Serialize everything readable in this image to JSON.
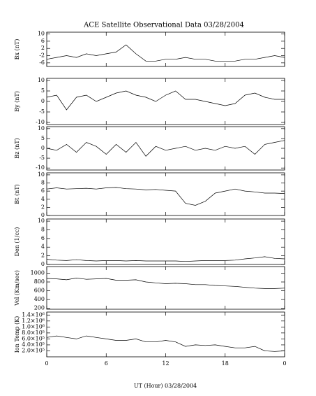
{
  "title": "ACE Satellite Observational Data   03/28/2004",
  "xlabel": "UT (Hour)   03/28/2004",
  "chart_data": [
    {
      "type": "line",
      "ylabel": "Bx (nT)",
      "ylim": [
        -8,
        11
      ],
      "yticks": [
        10,
        6,
        2,
        -2,
        -6
      ],
      "xlim": [
        0,
        24
      ],
      "xticks": [
        0,
        6,
        12,
        18,
        {
          "value": 24,
          "label": "0"
        }
      ],
      "x": [
        0,
        1,
        2,
        3,
        4,
        5,
        6,
        7,
        8,
        9,
        10,
        11,
        12,
        13,
        14,
        15,
        16,
        17,
        18,
        19,
        20,
        21,
        22,
        23,
        24
      ],
      "values": [
        -4,
        -3,
        -2,
        -3,
        -1,
        -2,
        -1,
        0,
        4,
        -1,
        -5,
        -5,
        -4,
        -4,
        -3,
        -4,
        -4,
        -5,
        -5,
        -5,
        -4,
        -4,
        -3,
        -2,
        -3
      ]
    },
    {
      "type": "line",
      "ylabel": "By (nT)",
      "ylim": [
        -11,
        11
      ],
      "yticks": [
        10,
        5,
        0,
        -5,
        -10
      ],
      "xlim": [
        0,
        24
      ],
      "xticks": [
        0,
        6,
        12,
        18,
        {
          "value": 24,
          "label": "0"
        }
      ],
      "x": [
        0,
        1,
        2,
        3,
        4,
        5,
        6,
        7,
        8,
        9,
        10,
        11,
        12,
        13,
        14,
        15,
        16,
        17,
        18,
        19,
        20,
        21,
        22,
        23,
        24
      ],
      "values": [
        2,
        3,
        -4,
        2,
        3,
        0,
        2,
        4,
        5,
        3,
        2,
        0,
        3,
        5,
        1,
        1,
        0,
        -1,
        -2,
        -1,
        3,
        4,
        2,
        1,
        1
      ]
    },
    {
      "type": "line",
      "ylabel": "Bz (nT)",
      "ylim": [
        -11,
        11
      ],
      "yticks": [
        10,
        5,
        0,
        -5,
        -10
      ],
      "xlim": [
        0,
        24
      ],
      "xticks": [
        0,
        6,
        12,
        18,
        {
          "value": 24,
          "label": "0"
        }
      ],
      "x": [
        0,
        1,
        2,
        3,
        4,
        5,
        6,
        7,
        8,
        9,
        10,
        11,
        12,
        13,
        14,
        15,
        16,
        17,
        18,
        19,
        20,
        21,
        22,
        23,
        24
      ],
      "values": [
        0,
        -1,
        2,
        -2,
        3,
        1,
        -3,
        2,
        -2,
        3,
        -4,
        1,
        -1,
        0,
        1,
        -1,
        0,
        -1,
        1,
        0,
        1,
        -3,
        2,
        3,
        4
      ]
    },
    {
      "type": "line",
      "ylabel": "Bt (nT)",
      "ylim": [
        0,
        10.5
      ],
      "yticks": [
        0,
        2,
        4,
        6,
        8,
        10
      ],
      "xlim": [
        0,
        24
      ],
      "xticks": [
        0,
        6,
        12,
        18,
        {
          "value": 24,
          "label": "0"
        }
      ],
      "x": [
        0,
        1,
        2,
        3,
        4,
        5,
        6,
        7,
        8,
        9,
        10,
        11,
        12,
        13,
        14,
        15,
        16,
        17,
        18,
        19,
        20,
        21,
        22,
        23,
        24
      ],
      "values": [
        6.5,
        6.8,
        6.5,
        6.6,
        6.7,
        6.5,
        6.8,
        6.9,
        6.6,
        6.5,
        6.3,
        6.4,
        6.2,
        6.0,
        3,
        2.5,
        3.5,
        5.5,
        6,
        6.5,
        6,
        5.8,
        5.5,
        5.5,
        5.4
      ]
    },
    {
      "type": "line",
      "ylabel": "Den (1/cc)",
      "ylim": [
        0,
        10.5
      ],
      "yticks": [
        0,
        2,
        4,
        6,
        8,
        10
      ],
      "xlim": [
        0,
        24
      ],
      "xticks": [
        0,
        6,
        12,
        18,
        {
          "value": 24,
          "label": "0"
        }
      ],
      "x": [
        0,
        1,
        2,
        3,
        4,
        5,
        6,
        7,
        8,
        9,
        10,
        11,
        12,
        13,
        14,
        15,
        16,
        17,
        18,
        19,
        20,
        21,
        22,
        23,
        24
      ],
      "values": [
        1.2,
        1.0,
        0.9,
        1.1,
        0.9,
        0.8,
        0.9,
        0.9,
        0.8,
        0.9,
        0.8,
        0.8,
        0.8,
        0.8,
        0.7,
        0.8,
        0.9,
        0.9,
        0.9,
        1.0,
        1.3,
        1.5,
        1.8,
        1.4,
        1.3
      ]
    },
    {
      "type": "line",
      "ylabel": "Vel (Km/sec)",
      "ylim": [
        180,
        1150
      ],
      "yticks": [
        200,
        400,
        600,
        800,
        1000
      ],
      "xlim": [
        0,
        24
      ],
      "xticks": [
        0,
        6,
        12,
        18,
        {
          "value": 24,
          "label": "0"
        }
      ],
      "x": [
        0,
        1,
        2,
        3,
        4,
        5,
        6,
        7,
        8,
        9,
        10,
        11,
        12,
        13,
        14,
        15,
        16,
        17,
        18,
        19,
        20,
        21,
        22,
        23,
        24
      ],
      "values": [
        880,
        870,
        850,
        890,
        860,
        870,
        880,
        840,
        840,
        850,
        800,
        780,
        760,
        770,
        760,
        740,
        740,
        720,
        710,
        700,
        680,
        660,
        650,
        650,
        660
      ]
    },
    {
      "type": "line",
      "ylabel": "Ion Temp (K)",
      "ylim": [
        0,
        1500000
      ],
      "yticks": [
        {
          "value": 200000,
          "label": "2.0×10⁵"
        },
        {
          "value": 400000,
          "label": "4.0×10⁵"
        },
        {
          "value": 600000,
          "label": "6.0×10⁵"
        },
        {
          "value": 800000,
          "label": "8.0×10⁵"
        },
        {
          "value": 1000000,
          "label": "1.0×10⁶"
        },
        {
          "value": 1200000,
          "label": "1.2×10⁶"
        },
        {
          "value": 1400000,
          "label": "1.4×10⁶"
        }
      ],
      "xlim": [
        0,
        24
      ],
      "xticks": [
        0,
        6,
        12,
        18,
        {
          "value": 24,
          "label": "0"
        }
      ],
      "x": [
        0,
        1,
        2,
        3,
        4,
        5,
        6,
        7,
        8,
        9,
        10,
        11,
        12,
        13,
        14,
        15,
        16,
        17,
        18,
        19,
        20,
        21,
        22,
        23,
        24
      ],
      "values": [
        650000,
        700000,
        650000,
        600000,
        700000,
        650000,
        600000,
        550000,
        550000,
        600000,
        500000,
        500000,
        550000,
        500000,
        350000,
        400000,
        380000,
        400000,
        350000,
        300000,
        300000,
        350000,
        200000,
        180000,
        200000
      ]
    }
  ]
}
